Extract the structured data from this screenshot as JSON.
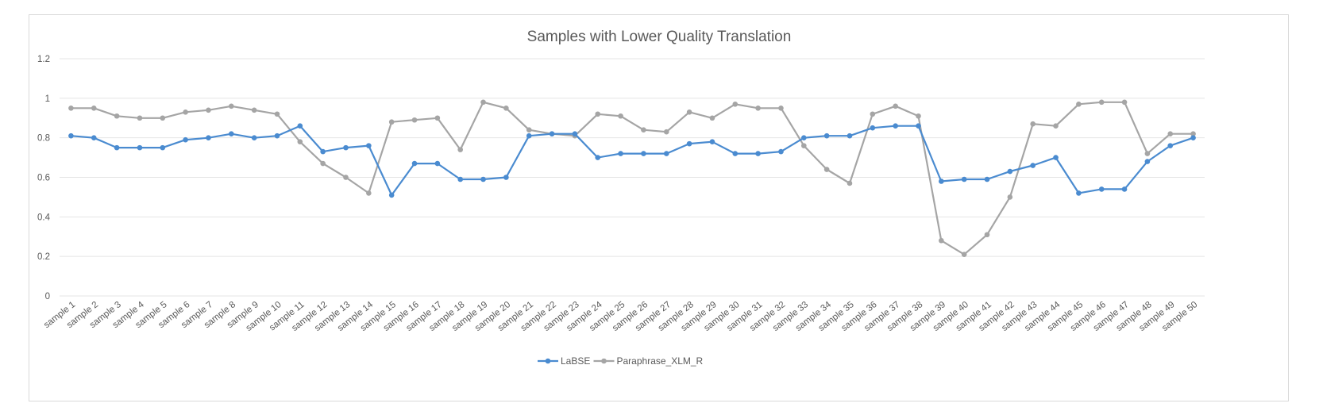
{
  "chart_data": {
    "type": "line",
    "title": "Samples with Lower Quality Translation",
    "xlabel": "",
    "ylabel": "",
    "ylim": [
      0,
      1.2
    ],
    "yticks": [
      "0",
      "0.2",
      "0.4",
      "0.6",
      "0.8",
      "1",
      "1.2"
    ],
    "grid": true,
    "legend_position": "bottom",
    "categories": [
      "sample 1",
      "sample 2",
      "sample 3",
      "sample 4",
      "sample 5",
      "sample 6",
      "sample 7",
      "sample 8",
      "sample 9",
      "sample 10",
      "sample 11",
      "sample 12",
      "sample 13",
      "sample 14",
      "sample 15",
      "sample 16",
      "sample 17",
      "sample 18",
      "sample 19",
      "sample 20",
      "sample 21",
      "sample 22",
      "sample 23",
      "sample 24",
      "sample 25",
      "sample 26",
      "sample 27",
      "sample 28",
      "sample 29",
      "sample 30",
      "sample 31",
      "sample 32",
      "sample 33",
      "sample 34",
      "sample 35",
      "sample 36",
      "sample 37",
      "sample 38",
      "sample 39",
      "sample 40",
      "sample 41",
      "sample 42",
      "sample 43",
      "sample 44",
      "sample 45",
      "sample 46",
      "sample 47",
      "sample 48",
      "sample 49",
      "sample 50"
    ],
    "series": [
      {
        "name": "LaBSE",
        "color": "#4a8bd0",
        "values": [
          0.81,
          0.8,
          0.75,
          0.75,
          0.75,
          0.79,
          0.8,
          0.82,
          0.8,
          0.81,
          0.86,
          0.73,
          0.75,
          0.76,
          0.51,
          0.67,
          0.67,
          0.59,
          0.59,
          0.6,
          0.81,
          0.82,
          0.82,
          0.7,
          0.72,
          0.72,
          0.72,
          0.77,
          0.78,
          0.72,
          0.72,
          0.73,
          0.8,
          0.81,
          0.81,
          0.85,
          0.86,
          0.86,
          0.58,
          0.59,
          0.59,
          0.63,
          0.66,
          0.7,
          0.52,
          0.54,
          0.54,
          0.68,
          0.76,
          0.8
        ]
      },
      {
        "name": "Paraphrase_XLM_R",
        "color": "#a5a5a5",
        "values": [
          0.95,
          0.95,
          0.91,
          0.9,
          0.9,
          0.93,
          0.94,
          0.96,
          0.94,
          0.92,
          0.78,
          0.67,
          0.6,
          0.52,
          0.88,
          0.89,
          0.9,
          0.74,
          0.98,
          0.95,
          0.84,
          0.82,
          0.81,
          0.92,
          0.91,
          0.84,
          0.83,
          0.93,
          0.9,
          0.97,
          0.95,
          0.95,
          0.76,
          0.64,
          0.57,
          0.92,
          0.96,
          0.91,
          0.28,
          0.21,
          0.31,
          0.5,
          0.87,
          0.86,
          0.97,
          0.98,
          0.98,
          0.72,
          0.82,
          0.82
        ]
      }
    ]
  }
}
